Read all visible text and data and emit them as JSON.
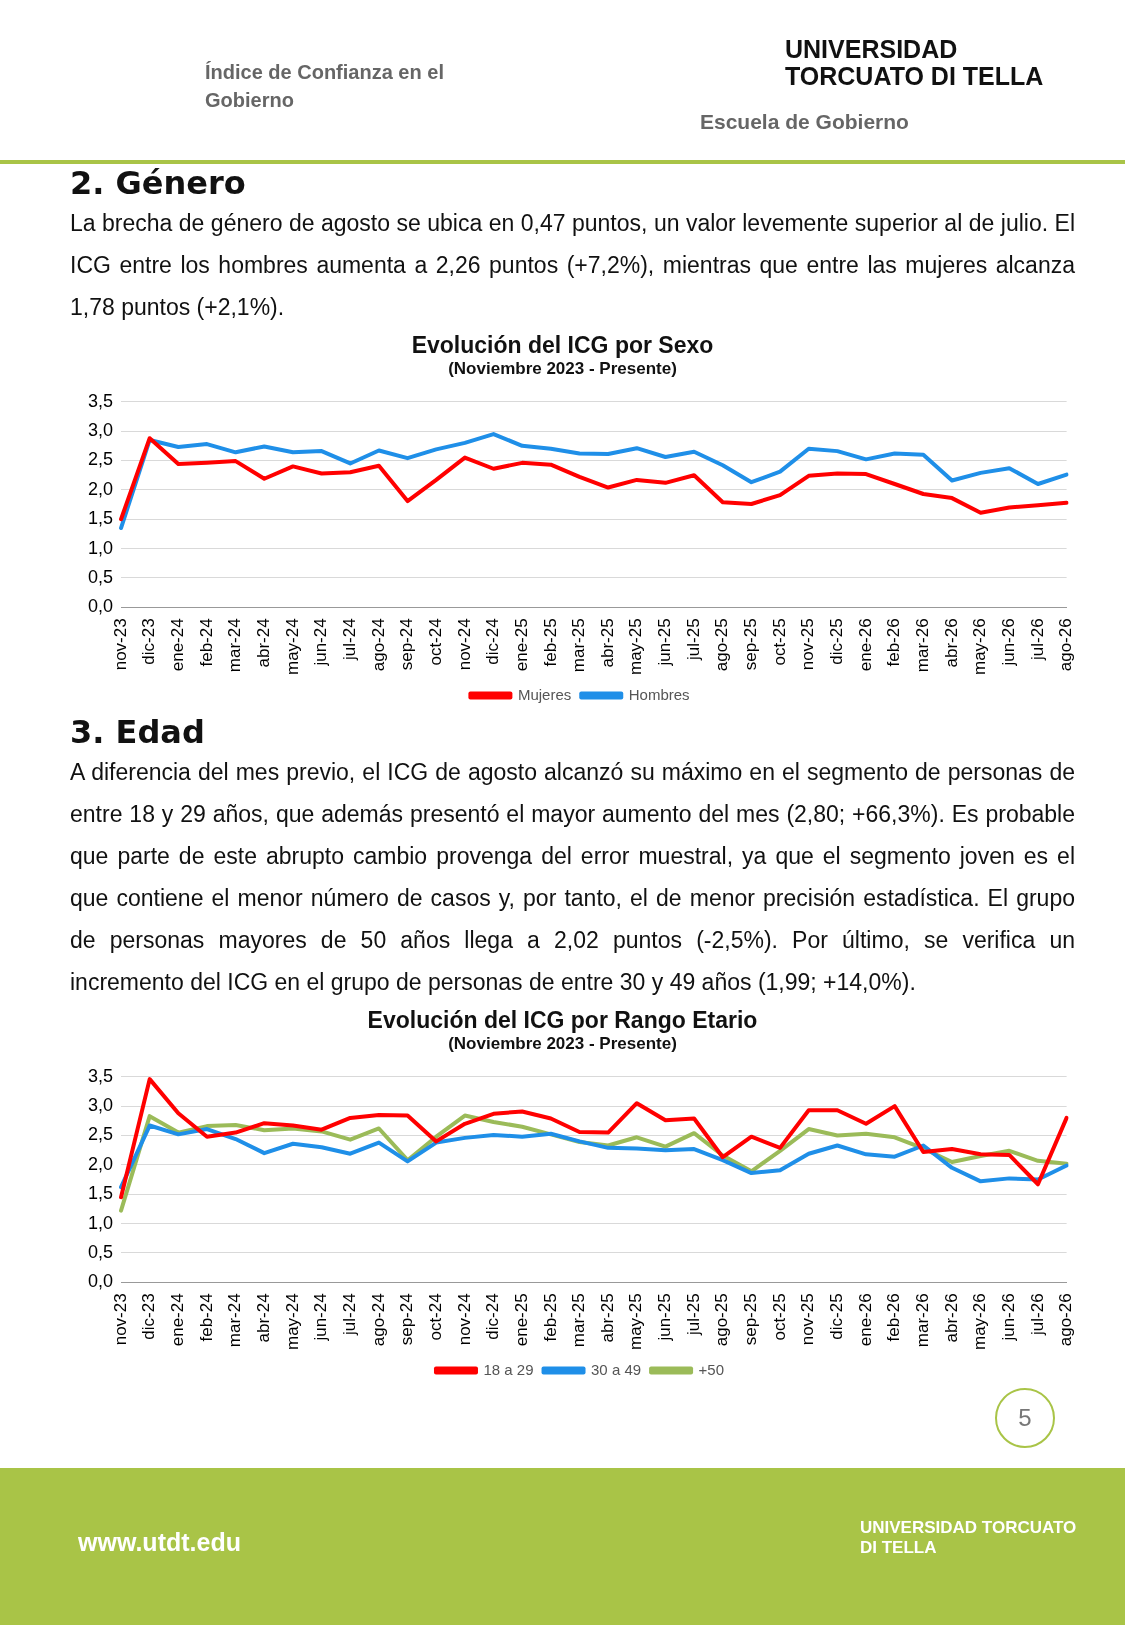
{
  "chart_data": [
    {
      "type": "line",
      "title": "Evolución del ICG por Sexo",
      "subtitle": "(Noviembre 2023 - Presente)",
      "annotations": [
        "Índice de Confianza en el Gobierno",
        "UNIVERSIDAD TORCUATO DI TELLA",
        "Escuela de Gobierno",
        "2. Género",
        "La brecha de género de agosto se ubica en 0,47 puntos, un valor levemente superior al de julio. El ICG entre los hombres aumenta a 2,26 puntos (+7,2%), mientras que entre las mujeres alcanza 1,78 puntos (+2,1%)."
      ],
      "categories": [
        "nov-23",
        "dic-23",
        "ene-24",
        "feb-24",
        "mar-24",
        "abr-24",
        "may-24",
        "jun-24",
        "jul-24",
        "ago-24",
        "sep-24",
        "oct-24",
        "nov-24",
        "dic-24",
        "ene-25",
        "feb-25",
        "mar-25",
        "abr-25",
        "may-25",
        "jun-25",
        "jul-25",
        "ago-25",
        "sep-25",
        "oct-25",
        "nov-25",
        "dic-25",
        "ene-26",
        "feb-26",
        "mar-26",
        "abr-26",
        "may-26",
        "jun-26",
        "jul-26",
        "ago-26"
      ],
      "series": [
        {
          "name": "Mujeres",
          "color": "#ff0000",
          "values": [
            1.5,
            2.88,
            2.44,
            2.46,
            2.49,
            2.19,
            2.4,
            2.28,
            2.3,
            2.41,
            1.81,
            2.17,
            2.55,
            2.36,
            2.46,
            2.43,
            2.22,
            2.04,
            2.17,
            2.12,
            2.25,
            1.79,
            1.76,
            1.91,
            2.24,
            2.28,
            2.27,
            2.1,
            1.93,
            1.86,
            1.61,
            1.7,
            1.74,
            1.78
          ]
        },
        {
          "name": "Hombres",
          "color": "#1f8fe8",
          "values": [
            1.35,
            2.85,
            2.73,
            2.78,
            2.64,
            2.74,
            2.64,
            2.66,
            2.45,
            2.67,
            2.54,
            2.69,
            2.8,
            2.95,
            2.75,
            2.7,
            2.62,
            2.61,
            2.71,
            2.56,
            2.65,
            2.42,
            2.13,
            2.31,
            2.7,
            2.66,
            2.52,
            2.62,
            2.6,
            2.16,
            2.29,
            2.37,
            2.1,
            2.26
          ]
        }
      ],
      "ylim": [
        0,
        3.5
      ],
      "yticks": [
        {
          "value": 0,
          "label": "0,0"
        },
        {
          "value": 0.5,
          "label": "0,5"
        },
        {
          "value": 1,
          "label": "1,0"
        },
        {
          "value": 1.5,
          "label": "1,5"
        },
        {
          "value": 2,
          "label": "2,0"
        },
        {
          "value": 2.5,
          "label": "2,5"
        },
        {
          "value": 3,
          "label": "3,0"
        },
        {
          "value": 3.5,
          "label": "3,5"
        }
      ],
      "grid": "y",
      "legend": "bottom",
      "marker": "none",
      "line_style": "solid"
    },
    {
      "type": "line",
      "title": "Evolución del ICG por Rango Etario",
      "subtitle": "(Noviembre 2023 - Presente)",
      "annotations": [
        "3. Edad",
        "A diferencia del mes previo, el ICG de agosto alcanzó su máximo en el segmento de personas de entre 18 y 29 años, que además presentó el mayor aumento del mes (2,80; +66,3%). Es probable que parte de este abrupto cambio provenga del error muestral, ya que el segmento joven es el que contiene el menor número de casos y, por tanto, el de menor precisión estadística. El grupo de personas mayores de 50 años llega a 2,02 puntos (-2,5%). Por último, se verifica un incremento del ICG en el grupo de personas de entre 30 y 49 años (1,99; +14,0%).",
        "5",
        "www.utdt.edu",
        "UNIVERSIDAD TORCUATO DI TELLA"
      ],
      "categories": [
        "nov-23",
        "dic-23",
        "ene-24",
        "feb-24",
        "mar-24",
        "abr-24",
        "may-24",
        "jun-24",
        "jul-24",
        "ago-24",
        "sep-24",
        "oct-24",
        "nov-24",
        "dic-24",
        "ene-25",
        "feb-25",
        "mar-25",
        "abr-25",
        "may-25",
        "jun-25",
        "jul-25",
        "ago-25",
        "sep-25",
        "oct-25",
        "nov-25",
        "dic-25",
        "ene-26",
        "feb-26",
        "mar-26",
        "abr-26",
        "may-26",
        "jun-26",
        "jul-26",
        "ago-26"
      ],
      "series": [
        {
          "name": "18 a 29",
          "color": "#ff0000",
          "values": [
            1.45,
            3.46,
            2.88,
            2.48,
            2.55,
            2.71,
            2.67,
            2.6,
            2.8,
            2.85,
            2.84,
            2.4,
            2.7,
            2.87,
            2.91,
            2.79,
            2.56,
            2.55,
            3.05,
            2.76,
            2.79,
            2.13,
            2.48,
            2.29,
            2.93,
            2.93,
            2.7,
            3.0,
            2.22,
            2.27,
            2.18,
            2.17,
            1.67,
            2.8
          ]
        },
        {
          "name": "30 a 49",
          "color": "#1f8fe8",
          "values": [
            1.62,
            2.67,
            2.52,
            2.61,
            2.44,
            2.2,
            2.36,
            2.3,
            2.19,
            2.38,
            2.06,
            2.38,
            2.46,
            2.51,
            2.48,
            2.53,
            2.4,
            2.29,
            2.28,
            2.25,
            2.27,
            2.08,
            1.86,
            1.91,
            2.19,
            2.33,
            2.18,
            2.14,
            2.33,
            1.95,
            1.72,
            1.77,
            1.75,
            1.99
          ]
        },
        {
          "name": "+50",
          "color": "#9bbb59",
          "values": [
            1.22,
            2.83,
            2.55,
            2.66,
            2.68,
            2.59,
            2.62,
            2.57,
            2.43,
            2.62,
            2.08,
            2.48,
            2.84,
            2.73,
            2.65,
            2.52,
            2.39,
            2.33,
            2.47,
            2.31,
            2.54,
            2.16,
            1.89,
            2.24,
            2.61,
            2.5,
            2.53,
            2.47,
            2.28,
            2.05,
            2.15,
            2.24,
            2.07,
            2.02
          ]
        }
      ],
      "ylim": [
        0,
        3.5
      ],
      "yticks": [
        {
          "value": 0,
          "label": "0,0"
        },
        {
          "value": 0.5,
          "label": "0,5"
        },
        {
          "value": 1,
          "label": "1,0"
        },
        {
          "value": 1.5,
          "label": "1,5"
        },
        {
          "value": 2,
          "label": "2,0"
        },
        {
          "value": 2.5,
          "label": "2,5"
        },
        {
          "value": 3,
          "label": "3,0"
        },
        {
          "value": 3.5,
          "label": "3,5"
        }
      ],
      "grid": "y",
      "legend": "bottom",
      "marker": "none",
      "line_style": "solid"
    }
  ]
}
